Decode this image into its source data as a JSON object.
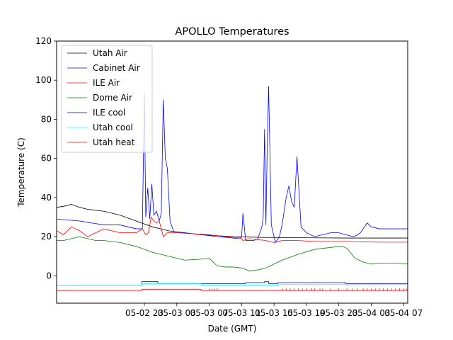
{
  "chart_data": {
    "type": "line",
    "title": "APOLLO Temperatures",
    "xlabel": "Date (GMT)",
    "ylabel": "Temperature (C)",
    "xlim": [
      "05-02 12:10",
      "05-04 07:30"
    ],
    "ylim": [
      -14,
      120
    ],
    "x_tick_labels": [
      "05-02 23",
      "05-03 03",
      "05-03 07",
      "05-03 11",
      "05-03 15",
      "05-03 19",
      "05-03 23",
      "05-04 03",
      "05-04 07"
    ],
    "y_tick_labels": [
      "0",
      "20",
      "40",
      "60",
      "80",
      "100",
      "120"
    ],
    "grid": false,
    "legend_position": "upper-left",
    "series": [
      {
        "name": "Utah Air",
        "color": "#000000",
        "x": [
          "05-02 12:10",
          "05-02 13:00",
          "05-02 14:00",
          "05-02 15:00",
          "05-02 16:00",
          "05-02 18:00",
          "05-02 20:00",
          "05-02 22:00",
          "05-03 00:00",
          "05-03 02:00",
          "05-03 04:00",
          "05-03 06:00",
          "05-03 08:00",
          "05-03 10:00",
          "05-03 12:00",
          "05-03 14:00",
          "05-03 16:00",
          "05-03 20:00",
          "05-04 00:00",
          "05-04 04:00",
          "05-04 07:30"
        ],
        "values": [
          35,
          35.5,
          36.5,
          35,
          34,
          33,
          31,
          28,
          25,
          23,
          22,
          21,
          20.5,
          20,
          19.8,
          19.6,
          19.5,
          19.4,
          19.3,
          19.3,
          19.3
        ]
      },
      {
        "name": "Cabinet Air",
        "color": "#0000ff",
        "x": [
          "05-02 12:10",
          "05-02 15:00",
          "05-02 18:00",
          "05-02 20:00",
          "05-02 22:00",
          "05-02 22:45",
          "05-02 23:00",
          "05-02 23:10",
          "05-02 23:25",
          "05-02 23:40",
          "05-02 23:55",
          "05-03 00:10",
          "05-03 00:30",
          "05-03 00:50",
          "05-03 01:05",
          "05-03 01:20",
          "05-03 01:35",
          "05-03 01:50",
          "05-03 02:10",
          "05-03 02:40",
          "05-03 04:00",
          "05-03 08:00",
          "05-03 09:30",
          "05-03 10:30",
          "05-03 10:50",
          "05-03 11:00",
          "05-03 11:10",
          "05-03 11:30",
          "05-03 12:30",
          "05-03 13:00",
          "05-03 13:15",
          "05-03 13:30",
          "05-03 13:40",
          "05-03 13:50",
          "05-03 14:00",
          "05-03 14:10",
          "05-03 14:20",
          "05-03 14:40",
          "05-03 15:10",
          "05-03 15:40",
          "05-03 16:00",
          "05-03 16:30",
          "05-03 16:50",
          "05-03 17:10",
          "05-03 17:30",
          "05-03 17:50",
          "05-03 18:20",
          "05-03 19:00",
          "05-03 20:00",
          "05-03 21:00",
          "05-03 22:00",
          "05-03 23:00",
          "05-03 23:50",
          "05-04 00:50",
          "05-04 01:20",
          "05-04 01:40",
          "05-04 02:30",
          "05-04 03:00",
          "05-04 04:00",
          "05-04 05:00",
          "05-04 06:00",
          "05-04 07:30"
        ],
        "values": [
          29,
          28,
          26,
          26,
          24,
          24,
          93,
          30,
          45,
          29,
          47,
          31,
          33,
          28,
          32,
          90,
          60,
          55,
          28,
          22,
          22,
          20,
          19.5,
          19,
          19.5,
          20,
          32,
          18,
          18,
          19,
          22,
          25,
          30,
          75,
          26,
          67,
          97,
          26,
          17,
          20,
          26,
          40,
          46,
          38,
          35,
          61,
          25,
          22,
          20,
          21,
          22,
          22,
          21,
          20,
          21,
          22,
          27,
          25,
          24,
          24,
          24,
          24
        ]
      },
      {
        "name": "ILE Air",
        "color": "#ff0000",
        "x": [
          "05-02 12:10",
          "05-02 13:00",
          "05-02 14:00",
          "05-02 15:00",
          "05-02 16:00",
          "05-02 17:00",
          "05-02 18:00",
          "05-02 20:00",
          "05-02 22:00",
          "05-02 22:45",
          "05-02 23:10",
          "05-02 23:30",
          "05-02 23:50",
          "05-03 00:10",
          "05-03 00:30",
          "05-03 00:50",
          "05-03 01:20",
          "05-03 01:50",
          "05-03 02:20",
          "05-03 03:00",
          "05-03 05:00",
          "05-03 07:00",
          "05-03 09:00",
          "05-03 10:30",
          "05-03 11:00",
          "05-03 11:10",
          "05-03 12:00",
          "05-03 13:00",
          "05-03 14:00",
          "05-03 15:00",
          "05-03 16:00",
          "05-03 18:00",
          "05-03 20:00",
          "05-03 22:00",
          "05-04 00:00",
          "05-04 02:00",
          "05-04 04:00",
          "05-04 07:30"
        ],
        "values": [
          23,
          21,
          25,
          23,
          20,
          22,
          24,
          22,
          22,
          24,
          21,
          22,
          30,
          28,
          27,
          28,
          20,
          22,
          22,
          22,
          21.5,
          21,
          20,
          19.5,
          19,
          18,
          19,
          18.5,
          18,
          17,
          18,
          18,
          17.5,
          17.5,
          17.5,
          17.3,
          17.2,
          17.2
        ]
      },
      {
        "name": "Dome Air",
        "color": "#008000",
        "x": [
          "05-02 12:10",
          "05-02 13:00",
          "05-02 14:00",
          "05-02 15:00",
          "05-02 16:00",
          "05-02 17:00",
          "05-02 18:00",
          "05-02 20:00",
          "05-02 22:00",
          "05-03 00:00",
          "05-03 01:00",
          "05-03 02:00",
          "05-03 04:00",
          "05-03 06:00",
          "05-03 07:00",
          "05-03 08:00",
          "05-03 09:00",
          "05-03 10:00",
          "05-03 11:00",
          "05-03 12:00",
          "05-03 13:00",
          "05-03 14:00",
          "05-03 15:00",
          "05-03 16:00",
          "05-03 18:00",
          "05-03 20:00",
          "05-03 22:00",
          "05-03 23:00",
          "05-03 23:30",
          "05-04 00:00",
          "05-04 01:00",
          "05-04 02:00",
          "05-04 03:00",
          "05-04 04:00",
          "05-04 05:00",
          "05-04 06:00",
          "05-04 07:30"
        ],
        "values": [
          18,
          18,
          19,
          20,
          19,
          18,
          18,
          17,
          15,
          12,
          11,
          10,
          8,
          8.5,
          9,
          5,
          4.5,
          4.5,
          4,
          2.5,
          3,
          4,
          6,
          8,
          11,
          13.5,
          14.5,
          15,
          15,
          14,
          9,
          7,
          6,
          6.5,
          6.5,
          6.5,
          6
        ]
      },
      {
        "name": "ILE cool",
        "color": "#00008b",
        "x": [
          "05-02 12:10",
          "05-02 22:40",
          "05-02 22:40",
          "05-03 00:40",
          "05-03 00:40",
          "05-03 11:30",
          "05-03 11:30",
          "05-03 13:50",
          "05-03 13:50",
          "05-03 14:20",
          "05-03 14:20",
          "05-03 15:30",
          "05-03 15:30",
          "05-03 23:50",
          "05-03 23:50",
          "05-04 07:30"
        ],
        "values": [
          -5,
          -5,
          -3,
          -3,
          -4,
          -4,
          -3.5,
          -3.5,
          -3,
          -3,
          -4,
          -4,
          -3.5,
          -3.5,
          -4,
          -4
        ]
      },
      {
        "name": "Utah cool",
        "color": "#00ffff",
        "x": [
          "05-02 12:10",
          "05-02 22:40",
          "05-02 22:40",
          "05-03 06:00",
          "05-03 06:00",
          "05-03 15:30",
          "05-03 15:30",
          "05-04 07:30"
        ],
        "values": [
          -5,
          -5,
          -4,
          -4,
          -4.8,
          -4.8,
          -4.5,
          -4.5
        ]
      },
      {
        "name": "Utah heat",
        "color": "#ff0000",
        "x": [
          "05-02 12:10",
          "05-02 22:40",
          "05-02 22:40",
          "05-03 06:00",
          "05-03 06:00",
          "05-04 07:30"
        ],
        "values": [
          -7.5,
          -7.5,
          -7,
          -7,
          -7.5,
          -7.5
        ]
      }
    ],
    "utah_heat_blips": [
      "05-03 07:00",
      "05-03 07:20",
      "05-03 07:40",
      "05-03 08:00",
      "05-03 16:00",
      "05-03 16:30",
      "05-03 17:00",
      "05-03 17:30",
      "05-03 18:00",
      "05-03 18:30",
      "05-03 19:00",
      "05-03 19:40",
      "05-03 20:00",
      "05-03 20:40",
      "05-03 21:00",
      "05-03 22:00",
      "05-03 23:00",
      "05-04 00:00",
      "05-04 00:40",
      "05-04 01:20",
      "05-04 02:00",
      "05-04 02:30",
      "05-04 03:00",
      "05-04 03:30",
      "05-04 04:00",
      "05-04 04:30",
      "05-04 05:00",
      "05-04 05:30",
      "05-04 06:00",
      "05-04 06:30",
      "05-04 07:00",
      "05-04 07:20"
    ]
  }
}
